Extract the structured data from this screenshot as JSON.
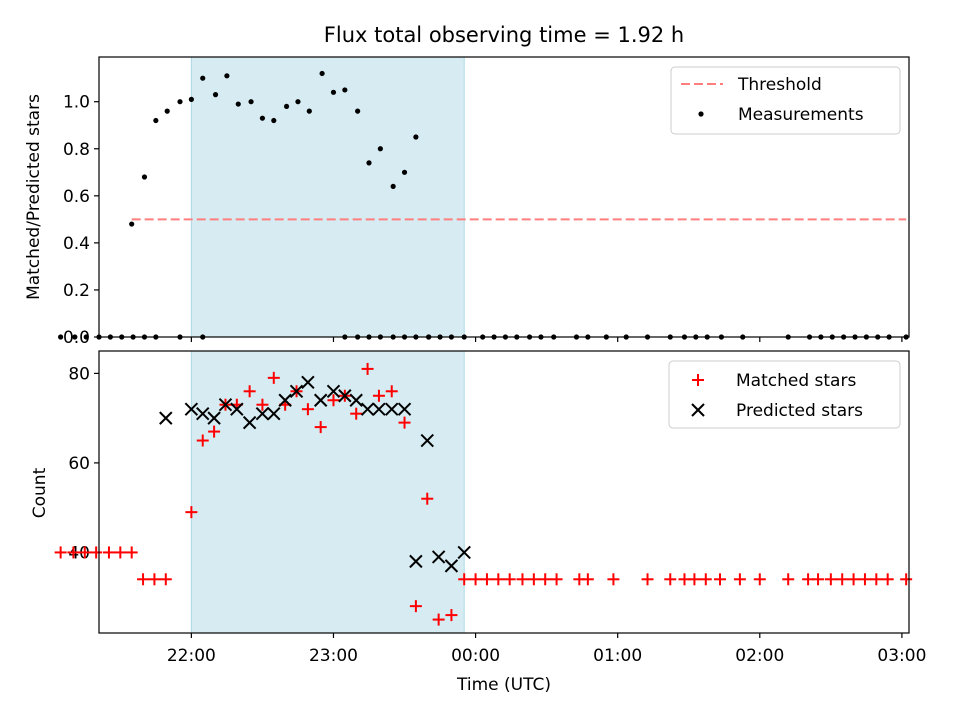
{
  "figure_title": "Flux total observing time = 1.92 h",
  "chart_data": [
    {
      "type": "scatter",
      "title": "Flux total observing time = 1.92 h",
      "xlabel": "",
      "ylabel": "Matched/Predicted stars",
      "x_unit": "hours since 21:00 UTC",
      "xlim": [
        0.35,
        6.05
      ],
      "ylim": [
        0.0,
        1.19
      ],
      "yticks": [
        0.0,
        0.2,
        0.4,
        0.6,
        0.8,
        1.0
      ],
      "ytick_labels": [
        "0.0",
        "0.2",
        "0.4",
        "0.6",
        "0.8",
        "1.0"
      ],
      "xticks": [
        1,
        2,
        3,
        4,
        5,
        6
      ],
      "grid": false,
      "legend_position": "upper right",
      "shaded_span": {
        "x_start": 1.0,
        "x_end": 2.92,
        "color": "#add8e6"
      },
      "series": [
        {
          "name": "Threshold",
          "kind": "line",
          "style": "dashed",
          "color": "#ff7f7f",
          "x": [
            0.58,
            6.03
          ],
          "y": [
            0.5,
            0.5
          ]
        },
        {
          "name": "Measurements",
          "kind": "scatter",
          "marker": "dot",
          "color": "#000000",
          "x": [
            0.58,
            0.67,
            0.75,
            0.83,
            0.92,
            1.0,
            1.08,
            1.17,
            1.25,
            1.33,
            1.42,
            1.5,
            1.58,
            1.67,
            1.75,
            1.83,
            1.92,
            2.0,
            2.08,
            2.17,
            2.25,
            2.33,
            2.42,
            2.5,
            2.58,
            2.67,
            2.75,
            2.83,
            2.92,
            0.92,
            0.75,
            1.08,
            2.08,
            2.17,
            2.25,
            2.33,
            2.42,
            2.5,
            2.58,
            2.67,
            0.08,
            0.18,
            0.26,
            0.35,
            0.43,
            0.51,
            0.59,
            0.67,
            3.05,
            3.13,
            3.21,
            3.29,
            3.38,
            3.46,
            3.55,
            3.71,
            3.79,
            3.92,
            4.06,
            4.21,
            4.37,
            4.47,
            4.55,
            4.63,
            4.73,
            4.88,
            5.2,
            5.35,
            5.43,
            5.51,
            5.59,
            5.67,
            5.75,
            5.83,
            5.91,
            6.03
          ],
          "y": [
            0.48,
            0.68,
            0.92,
            0.96,
            1.0,
            1.01,
            1.1,
            1.03,
            1.11,
            0.99,
            1.0,
            0.93,
            0.92,
            0.98,
            1.0,
            0.96,
            1.12,
            1.04,
            1.05,
            0.96,
            0.74,
            0.8,
            0.64,
            0.7,
            0.85,
            0.0,
            0.0,
            0.0,
            0.0,
            0.0,
            0.0,
            0.0,
            0.0,
            0.0,
            0.0,
            0.0,
            0.0,
            0.0,
            0.0,
            0.0,
            0.0,
            0.0,
            0.0,
            0.0,
            0.0,
            0.0,
            0.0,
            0.0,
            0.0,
            0.0,
            0.0,
            0.0,
            0.0,
            0.0,
            0.0,
            0.0,
            0.0,
            0.0,
            0.0,
            0.0,
            0.0,
            0.0,
            0.0,
            0.0,
            0.0,
            0.0,
            0.0,
            0.0,
            0.0,
            0.0,
            0.0,
            0.0,
            0.0,
            0.0,
            0.0,
            0.0
          ]
        }
      ]
    },
    {
      "type": "scatter",
      "title": "",
      "xlabel": "Time (UTC)",
      "ylabel": "Count",
      "x_unit": "hours since 21:00 UTC",
      "xlim": [
        0.35,
        6.05
      ],
      "ylim": [
        22,
        85
      ],
      "yticks": [
        40,
        60,
        80
      ],
      "ytick_labels": [
        "40",
        "60",
        "80"
      ],
      "xticks": [
        1,
        2,
        3,
        4,
        5,
        6
      ],
      "xtick_labels": [
        "22:00",
        "23:00",
        "00:00",
        "01:00",
        "02:00",
        "03:00"
      ],
      "grid": false,
      "legend_position": "upper right",
      "shaded_span": {
        "x_start": 1.0,
        "x_end": 2.92,
        "color": "#add8e6"
      },
      "series": [
        {
          "name": "Matched stars",
          "kind": "scatter",
          "marker": "plus",
          "color": "#ff0000",
          "x": [
            0.08,
            0.17,
            0.25,
            0.33,
            0.42,
            0.5,
            0.58,
            0.66,
            0.74,
            0.82,
            1.0,
            1.08,
            1.16,
            1.24,
            1.32,
            1.41,
            1.5,
            1.58,
            1.66,
            1.74,
            1.82,
            1.91,
            2.0,
            2.08,
            2.16,
            2.24,
            2.32,
            2.41,
            2.5,
            2.58,
            2.66,
            2.74,
            2.83,
            2.92,
            3.0,
            3.08,
            3.16,
            3.24,
            3.33,
            3.41,
            3.49,
            3.57,
            3.73,
            3.79,
            3.97,
            4.21,
            4.37,
            4.47,
            4.54,
            4.62,
            4.72,
            4.86,
            5.0,
            5.2,
            5.34,
            5.41,
            5.5,
            5.58,
            5.66,
            5.74,
            5.82,
            5.9,
            6.03
          ],
          "y": [
            40,
            40,
            40,
            40,
            40,
            40,
            40,
            34,
            34,
            34,
            49,
            65,
            67,
            73,
            73,
            76,
            73,
            79,
            73,
            76,
            72,
            68,
            74,
            75,
            71,
            81,
            75,
            76,
            69,
            28,
            52,
            25,
            26,
            34,
            34,
            34,
            34,
            34,
            34,
            34,
            34,
            34,
            34,
            34,
            34,
            34,
            34,
            34,
            34,
            34,
            34,
            34,
            34,
            34,
            34,
            34,
            34,
            34,
            34,
            34,
            34,
            34,
            34
          ]
        },
        {
          "name": "Predicted stars",
          "kind": "scatter",
          "marker": "x",
          "color": "#000000",
          "x": [
            0.82,
            1.0,
            1.08,
            1.16,
            1.24,
            1.32,
            1.41,
            1.5,
            1.58,
            1.66,
            1.74,
            1.82,
            1.91,
            2.0,
            2.08,
            2.16,
            2.24,
            2.32,
            2.41,
            2.5,
            2.58,
            2.66,
            2.74,
            2.83,
            2.92
          ],
          "y": [
            70,
            72,
            71,
            70,
            73,
            72,
            69,
            71,
            71,
            74,
            76,
            78,
            74,
            76,
            75,
            74,
            72,
            72,
            72,
            72,
            38,
            65,
            39,
            37,
            40
          ]
        }
      ]
    }
  ]
}
